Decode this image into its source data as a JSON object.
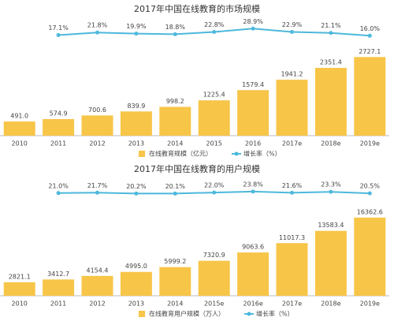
{
  "chart_data": [
    {
      "type": "bar",
      "title": "2017年中国在线教育的市场规模",
      "categories": [
        "2010",
        "2011",
        "2012",
        "2013",
        "2014",
        "2015",
        "2016",
        "2017e",
        "2018e",
        "2019e"
      ],
      "series": [
        {
          "name": "在线教育规模（亿元）",
          "color": "#f7c548",
          "values": [
            491.0,
            574.9,
            700.6,
            839.9,
            998.2,
            1225.4,
            1579.4,
            1941.2,
            2351.4,
            2727.1
          ],
          "value_labels": [
            "491.0",
            "574.9",
            "700.6",
            "839.9",
            "998.2",
            "1225.4",
            "1579.4",
            "1941.2",
            "2351.4",
            "2727.1"
          ]
        },
        {
          "name": "增长率（%）",
          "color": "#4db8dc",
          "type": "line",
          "axis": "y2",
          "values": [
            null,
            17.1,
            21.8,
            19.9,
            18.8,
            22.8,
            28.9,
            22.9,
            21.1,
            16.0
          ],
          "value_labels": [
            null,
            "17.1%",
            "21.8%",
            "19.9%",
            "18.8%",
            "22.8%",
            "28.9%",
            "22.9%",
            "21.1%",
            "16.0%"
          ]
        }
      ],
      "ylim": [
        0,
        2900
      ],
      "y2lim": [
        -5,
        45
      ]
    },
    {
      "type": "bar",
      "title": "2017年中国在线教育的用户规模",
      "categories": [
        "2010",
        "2011",
        "2012",
        "2013",
        "2014",
        "2015e",
        "2016e",
        "2017e",
        "2018e",
        "2019e"
      ],
      "series": [
        {
          "name": "在线教育用户规模（万人）",
          "color": "#f7c548",
          "values": [
            2821.1,
            3412.7,
            4154.4,
            4995.0,
            5999.2,
            7320.9,
            9063.6,
            11017.3,
            13583.4,
            16362.6
          ],
          "value_labels": [
            "2821.1",
            "3412.7",
            "4154.4",
            "4995.0",
            "5999.2",
            "7320.9",
            "9063.6",
            "11017.3",
            "13583.4",
            "16362.6"
          ]
        },
        {
          "name": "增长率（%）",
          "color": "#4db8dc",
          "type": "line",
          "axis": "y2",
          "values": [
            null,
            21.0,
            21.7,
            20.2,
            20.1,
            22.0,
            23.8,
            21.6,
            23.3,
            20.5
          ],
          "value_labels": [
            null,
            "21.0%",
            "21.7%",
            "20.2%",
            "20.1%",
            "22.0%",
            "23.8%",
            "21.6%",
            "23.3%",
            "20.5%"
          ]
        }
      ],
      "ylim": [
        0,
        17500
      ],
      "y2lim": [
        -5,
        45
      ]
    }
  ]
}
